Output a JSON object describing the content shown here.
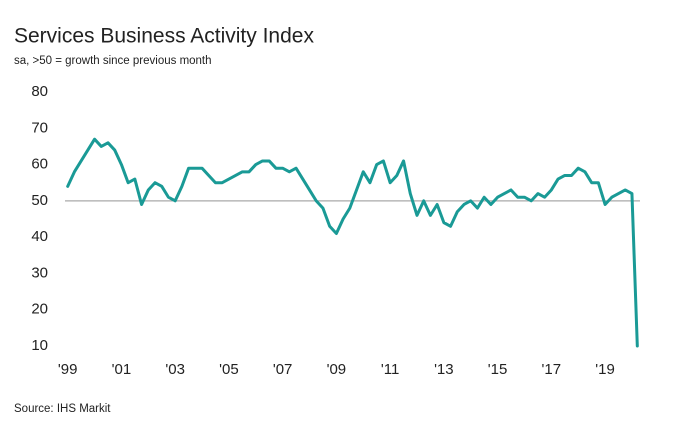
{
  "chart_data": {
    "type": "line",
    "title": "Services Business Activity Index",
    "subtitle": "sa, >50 = growth since previous month",
    "source": "Source: IHS Markit",
    "color": "#1a9a96",
    "reference_line": 50,
    "x": [
      1999.0,
      1999.25,
      1999.5,
      1999.75,
      2000.0,
      2000.25,
      2000.5,
      2000.75,
      2001.0,
      2001.25,
      2001.5,
      2001.75,
      2002.0,
      2002.25,
      2002.5,
      2002.75,
      2003.0,
      2003.25,
      2003.5,
      2003.75,
      2004.0,
      2004.25,
      2004.5,
      2004.75,
      2005.0,
      2005.25,
      2005.5,
      2005.75,
      2006.0,
      2006.25,
      2006.5,
      2006.75,
      2007.0,
      2007.25,
      2007.5,
      2007.75,
      2008.0,
      2008.25,
      2008.5,
      2008.75,
      2009.0,
      2009.25,
      2009.5,
      2009.75,
      2010.0,
      2010.25,
      2010.5,
      2010.75,
      2011.0,
      2011.25,
      2011.5,
      2011.75,
      2012.0,
      2012.25,
      2012.5,
      2012.75,
      2013.0,
      2013.25,
      2013.5,
      2013.75,
      2014.0,
      2014.25,
      2014.5,
      2014.75,
      2015.0,
      2015.25,
      2015.5,
      2015.75,
      2016.0,
      2016.25,
      2016.5,
      2016.75,
      2017.0,
      2017.25,
      2017.5,
      2017.75,
      2018.0,
      2018.25,
      2018.5,
      2018.75,
      2019.0,
      2019.25,
      2019.5,
      2019.75,
      2020.0,
      2020.2
    ],
    "values": [
      54,
      58,
      61,
      64,
      67,
      65,
      66,
      64,
      60,
      55,
      56,
      49,
      53,
      55,
      54,
      51,
      50,
      54,
      59,
      59,
      59,
      57,
      55,
      55,
      56,
      57,
      58,
      58,
      60,
      61,
      61,
      59,
      59,
      58,
      59,
      56,
      53,
      50,
      48,
      43,
      41,
      45,
      48,
      53,
      58,
      55,
      60,
      61,
      55,
      57,
      61,
      52,
      46,
      50,
      46,
      49,
      44,
      43,
      47,
      49,
      50,
      48,
      51,
      49,
      51,
      52,
      53,
      51,
      51,
      50,
      52,
      51,
      53,
      56,
      57,
      57,
      59,
      58,
      55,
      55,
      49,
      51,
      52,
      53,
      52,
      10
    ],
    "xlim": [
      1998.9,
      2020.3
    ],
    "ylim": [
      10,
      80
    ],
    "yticks": [
      10,
      20,
      30,
      40,
      50,
      60,
      70,
      80
    ],
    "xticks": [
      {
        "value": 1999,
        "label": "'99"
      },
      {
        "value": 2001,
        "label": "'01"
      },
      {
        "value": 2003,
        "label": "'03"
      },
      {
        "value": 2005,
        "label": "'05"
      },
      {
        "value": 2007,
        "label": "'07"
      },
      {
        "value": 2009,
        "label": "'09"
      },
      {
        "value": 2011,
        "label": "'11"
      },
      {
        "value": 2013,
        "label": "'13"
      },
      {
        "value": 2015,
        "label": "'15"
      },
      {
        "value": 2017,
        "label": "'17"
      },
      {
        "value": 2019,
        "label": "'19"
      }
    ]
  }
}
